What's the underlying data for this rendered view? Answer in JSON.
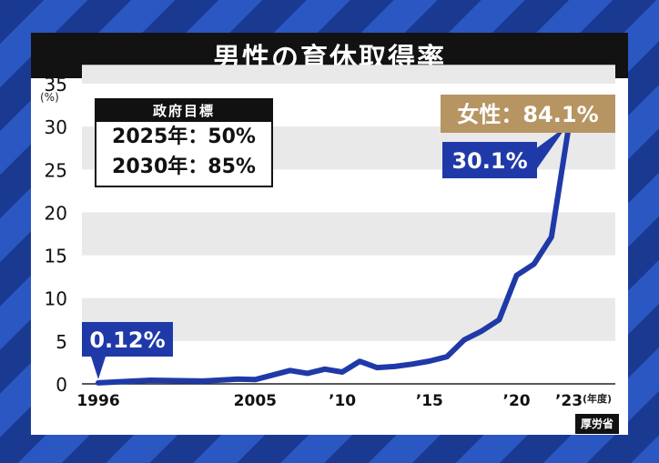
{
  "title": "男性の育休取得率",
  "source": "厚労省",
  "target": {
    "heading": "政府目標",
    "lines": [
      "2025年：50%",
      "2030年：85%"
    ]
  },
  "y_unit": "(%)",
  "x_unit": "(年度)",
  "colors": {
    "line": "#1f3aa8",
    "callout_blue": "#1f3aa8",
    "callout_gold": "#b69563",
    "stripe_band": "#e9e9e9",
    "title_bg": "#121212"
  },
  "callouts": {
    "start": "0.12%",
    "end": "30.1%",
    "female": "女性：84.1%"
  },
  "chart_data": {
    "type": "line",
    "title": "男性の育休取得率",
    "ylabel": "(%)",
    "xlabel": "(年度)",
    "ylim": [
      0,
      35
    ],
    "xlim": [
      1996,
      2023
    ],
    "yticks": [
      0,
      5,
      10,
      15,
      20,
      25,
      30,
      35
    ],
    "xticks": [
      {
        "value": 1996,
        "label": "1996"
      },
      {
        "value": 2005,
        "label": "2005"
      },
      {
        "value": 2010,
        "label": "’10"
      },
      {
        "value": 2015,
        "label": "’15"
      },
      {
        "value": 2020,
        "label": "’20"
      },
      {
        "value": 2023,
        "label": "’23"
      }
    ],
    "series": [
      {
        "x": [
          1996,
          1999,
          2002,
          2004,
          2005,
          2007,
          2008,
          2009,
          2010,
          2011,
          2012,
          2013,
          2014,
          2015,
          2016,
          2017,
          2018,
          2019,
          2020,
          2021,
          2022,
          2023
        ],
        "values": [
          0.12,
          0.42,
          0.33,
          0.56,
          0.5,
          1.56,
          1.23,
          1.72,
          1.38,
          2.63,
          1.89,
          2.03,
          2.3,
          2.65,
          3.16,
          5.14,
          6.16,
          7.48,
          12.65,
          13.97,
          17.13,
          30.1
        ]
      }
    ]
  }
}
